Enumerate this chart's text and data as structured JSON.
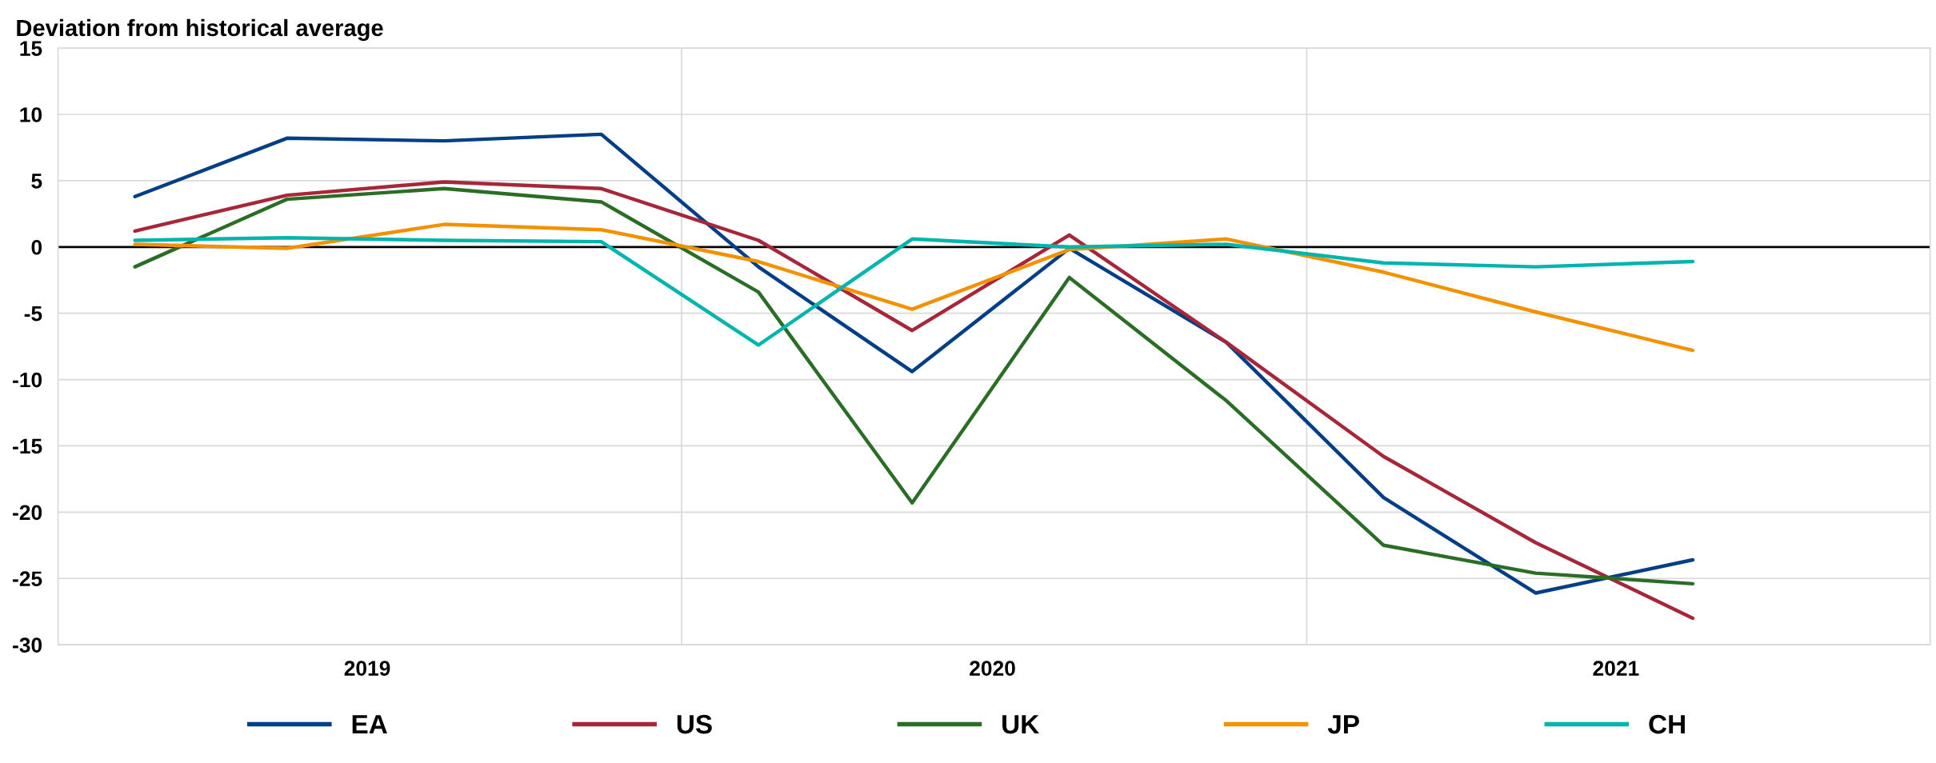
{
  "chart_data": {
    "type": "line",
    "title": "Deviation from historical average",
    "x": [
      "2019-02-15",
      "2019-05-15",
      "2019-08-15",
      "2019-11-15",
      "2020-02-15",
      "2020-05-15",
      "2020-08-15",
      "2020-11-15",
      "2021-02-15",
      "2021-05-15",
      "2021-08-15"
    ],
    "series": [
      {
        "name": "EA",
        "color": "#003f87",
        "values": [
          3.8,
          8.2,
          8.0,
          8.5,
          -1.5,
          -9.4,
          -0.1,
          -7.2,
          -18.9,
          -26.1,
          -23.6
        ]
      },
      {
        "name": "US",
        "color": "#a6263a",
        "values": [
          1.2,
          3.9,
          4.9,
          4.4,
          0.5,
          -6.3,
          0.9,
          -7.2,
          -15.8,
          -22.3,
          -28.0
        ]
      },
      {
        "name": "UK",
        "color": "#2a6e25",
        "values": [
          -1.5,
          3.6,
          4.4,
          3.4,
          -3.4,
          -19.3,
          -2.3,
          -11.6,
          -22.5,
          -24.6,
          -25.4
        ]
      },
      {
        "name": "JP",
        "color": "#f39200",
        "values": [
          0.2,
          -0.1,
          1.7,
          1.3,
          -1.1,
          -4.7,
          -0.2,
          0.6,
          -1.9,
          -4.9,
          -7.8
        ]
      },
      {
        "name": "CH",
        "color": "#00b5ad",
        "values": [
          0.5,
          0.7,
          0.5,
          0.4,
          -7.4,
          0.6,
          0.0,
          0.2,
          -1.2,
          -1.5,
          -1.1
        ]
      }
    ],
    "xlim": [
      "2019-01-01",
      "2022-01-01"
    ],
    "xticks": [
      {
        "value": "2019-07-01",
        "label": "2019"
      },
      {
        "value": "2020-07-01",
        "label": "2020"
      },
      {
        "value": "2021-07-01",
        "label": "2021"
      }
    ],
    "ylim": [
      -30,
      15
    ],
    "yticks": [
      -30,
      -25,
      -20,
      -15,
      -10,
      -5,
      0,
      5,
      10,
      15
    ],
    "ref_lines": [
      {
        "axis": "y",
        "value": 0,
        "color": "#000000"
      },
      {
        "axis": "x",
        "value": "2020-01-01",
        "color": "#d9d9d9"
      },
      {
        "axis": "x",
        "value": "2021-01-01",
        "color": "#d9d9d9"
      }
    ],
    "grid": "y",
    "legend": "bottom",
    "marker": "none",
    "line_style": "solid"
  }
}
